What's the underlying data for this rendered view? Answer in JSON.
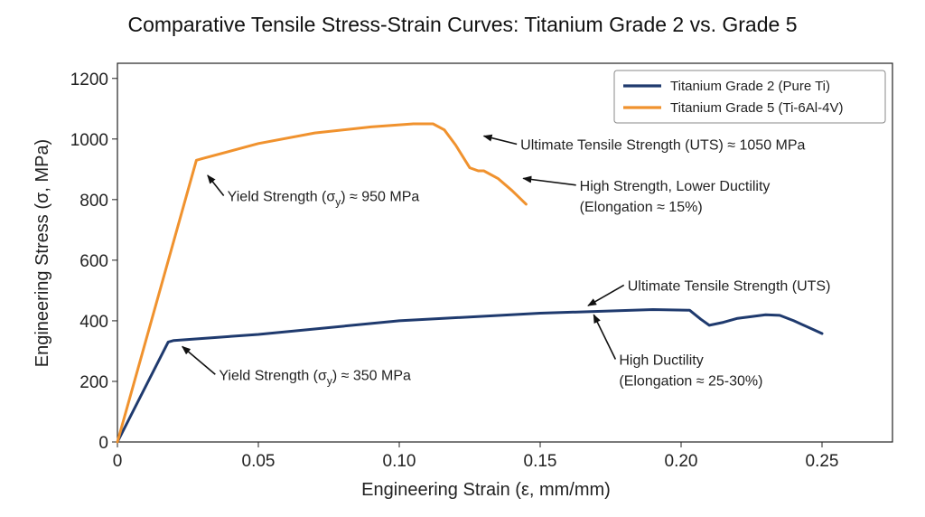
{
  "chart_data": {
    "type": "line",
    "title": "Comparative Tensile Stress-Strain Curves: Titanium Grade 2 vs. Grade 5",
    "xlabel": "Engineering Strain (ε, mm/mm)",
    "ylabel": "Engineering Stress (σ, MPa)",
    "xlim": [
      0,
      0.275
    ],
    "ylim": [
      0,
      1250
    ],
    "xticks": [
      0,
      0.05,
      0.1,
      0.15,
      0.2,
      0.25
    ],
    "xtick_labels": [
      "0",
      "0.05",
      "0.10",
      "0.15",
      "0.20",
      "0.25"
    ],
    "yticks": [
      0,
      200,
      400,
      600,
      800,
      1000,
      1200
    ],
    "ytick_labels": [
      "0",
      "200",
      "400",
      "600",
      "800",
      "1000",
      "1200"
    ],
    "grid": false,
    "legend_position": "top-right",
    "series": [
      {
        "name": "Titanium Grade 2 (Pure Ti)",
        "color": "#1f3a6e",
        "x": [
          0,
          0.018,
          0.02,
          0.05,
          0.1,
          0.15,
          0.19,
          0.203,
          0.207,
          0.21,
          0.215,
          0.22,
          0.23,
          0.235,
          0.24,
          0.25
        ],
        "y": [
          0,
          330,
          335,
          355,
          400,
          425,
          437,
          435,
          405,
          385,
          395,
          408,
          420,
          418,
          400,
          358
        ]
      },
      {
        "name": "Titanium Grade 5 (Ti-6Al-4V)",
        "color": "#f0922e",
        "x": [
          0,
          0.028,
          0.03,
          0.05,
          0.07,
          0.09,
          0.105,
          0.112,
          0.116,
          0.12,
          0.125,
          0.128,
          0.13,
          0.135,
          0.14,
          0.145
        ],
        "y": [
          0,
          930,
          935,
          985,
          1020,
          1040,
          1050,
          1050,
          1030,
          980,
          905,
          895,
          895,
          870,
          830,
          785
        ]
      }
    ],
    "annotations": [
      {
        "label": "Ultimate Tensile Strength (UTS) ≈ 1050 MPa",
        "arrow_to": [
          0.13,
          1010
        ],
        "text_at": [
          0.143,
          965
        ],
        "anchor": "start"
      },
      {
        "label_lines": [
          "High Strength, Lower Ductility",
          "(Elongation ≈ 15%)"
        ],
        "arrow_to": [
          0.144,
          870
        ],
        "text_at": [
          0.164,
          830
        ],
        "anchor": "start"
      },
      {
        "label_lines": [
          "Yield Strength (σ",
          ") ≈ 950 MPa"
        ],
        "sub": "y",
        "arrow_to": [
          0.032,
          880
        ],
        "text_at": [
          0.039,
          795
        ],
        "anchor": "start"
      },
      {
        "label": "Ultimate Tensile Strength (UTS)",
        "arrow_to": [
          0.167,
          450
        ],
        "text_at": [
          0.181,
          500
        ],
        "anchor": "start"
      },
      {
        "label_lines": [
          "High Ductility",
          "(Elongation ≈ 25-30%)"
        ],
        "arrow_to": [
          0.169,
          420
        ],
        "text_at": [
          0.178,
          255
        ],
        "anchor": "start"
      },
      {
        "label_lines": [
          "Yield Strength (σ",
          ") ≈ 350 MPa"
        ],
        "sub": "y",
        "arrow_to": [
          0.023,
          315
        ],
        "text_at": [
          0.036,
          205
        ],
        "anchor": "start"
      }
    ]
  }
}
